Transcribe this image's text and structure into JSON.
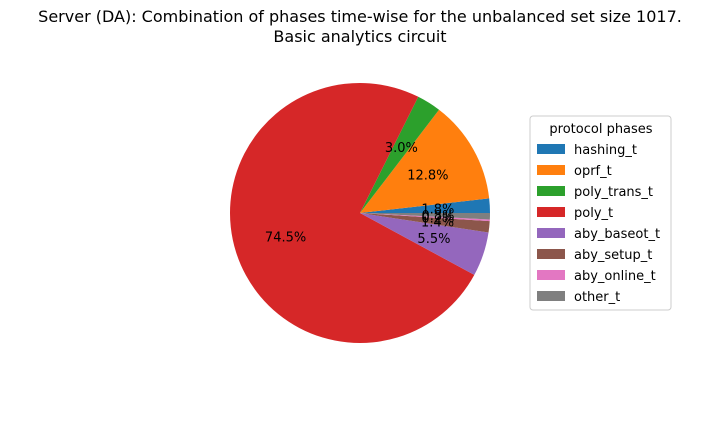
{
  "chart_data": {
    "type": "pie",
    "title_line1": "Server (DA): Combination of phases time-wise for the unbalanced set size 1017.",
    "title_line2": "Basic analytics circuit",
    "legend": {
      "title": "protocol phases",
      "placement": "right"
    },
    "slices": [
      {
        "label": "hashing_t",
        "value": 1.8,
        "pct_label": "1.8%",
        "color": "#1f77b4"
      },
      {
        "label": "oprf_t",
        "value": 12.8,
        "pct_label": "12.8%",
        "color": "#ff7f0e"
      },
      {
        "label": "poly_trans_t",
        "value": 3.0,
        "pct_label": "3.0%",
        "color": "#2ca02c"
      },
      {
        "label": "poly_t",
        "value": 74.5,
        "pct_label": "74.5%",
        "color": "#d62728"
      },
      {
        "label": "aby_baseot_t",
        "value": 5.5,
        "pct_label": "5.5%",
        "color": "#9467bd"
      },
      {
        "label": "aby_setup_t",
        "value": 1.4,
        "pct_label": "1.4%",
        "color": "#8c564b"
      },
      {
        "label": "aby_online_t",
        "value": 0.2,
        "pct_label": "0.2%",
        "color": "#e377c2"
      },
      {
        "label": "other_t",
        "value": 0.8,
        "pct_label": "0.8%",
        "color": "#7f7f7f"
      }
    ]
  }
}
